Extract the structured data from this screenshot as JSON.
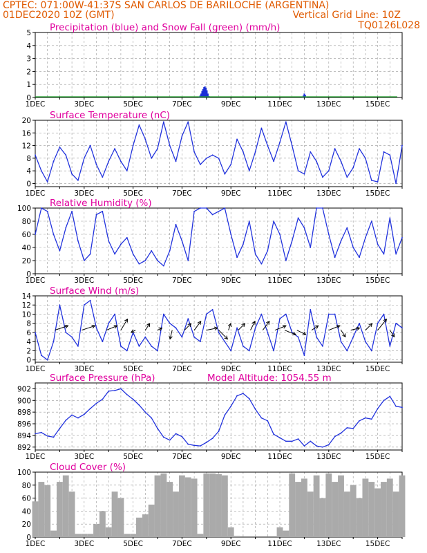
{
  "header": {
    "line1_left": "CPTEC:  071:00W-41:37S  SAN CARLOS DE BARILOCHE (ARGENTINA)",
    "line2_left": "01DEC2020 10Z (GMT)",
    "line2_right": "Vertical Grid Line: 10Z",
    "line3_right": "TQ0126L028"
  },
  "date_labels": [
    "1DEC",
    "3DEC",
    "5DEC",
    "7DEC",
    "9DEC",
    "11DEC",
    "13DEC",
    "15DEC"
  ],
  "year_fragment": "202",
  "panels": {
    "precip": {
      "title": "Precipitation (blue) and Snow Fall (green) (mm/h)"
    },
    "temp": {
      "title": "Surface Temperature (nC)"
    },
    "rh": {
      "title": "Relative Humidity (%)"
    },
    "wind": {
      "title": "Surface Wind (m/s)"
    },
    "pres": {
      "title": "Surface Pressure (hPa)",
      "extra": "Model Altitude: 1054.55 m"
    },
    "cloud": {
      "title": "Cloud Cover (%)"
    }
  },
  "colors": {
    "header_text": "#e05a00",
    "panel_title": "#e0009e",
    "precip_rain": "#1a2fd6",
    "snow": "#1f9e2a",
    "line": "#2233dd",
    "cloud_bars": "#aaaaaa",
    "grid": "#999999"
  },
  "chart_data": [
    {
      "type": "bar",
      "title": "Precipitation (blue) and Snow Fall (green) (mm/h)",
      "x_unit": "days since 01DEC2020 10Z",
      "ylim": [
        0,
        5
      ],
      "yticks": [
        0,
        1,
        2,
        3,
        4,
        5
      ],
      "series": [
        {
          "name": "Precipitation",
          "x": [
            6.7,
            6.74,
            6.78,
            6.82,
            6.86,
            6.9,
            6.94,
            6.98,
            7.02,
            7.06,
            7.1,
            10.92,
            10.96,
            11.0,
            11.04,
            11.08
          ],
          "values": [
            0.05,
            0.15,
            0.3,
            0.5,
            0.65,
            0.8,
            0.85,
            0.75,
            0.55,
            0.3,
            0.1,
            0.05,
            0.15,
            0.3,
            0.2,
            0.05
          ]
        },
        {
          "name": "Snow Fall",
          "x": [
            0.0,
            14.8
          ],
          "values": [
            0.05,
            0.05
          ]
        }
      ]
    },
    {
      "type": "line",
      "title": "Surface Temperature (nC)",
      "x_unit": "days since 01DEC2020 10Z",
      "ylim": [
        -1,
        20
      ],
      "yticks": [
        0,
        4,
        8,
        12,
        16,
        20
      ],
      "x": [
        0.0,
        0.25,
        0.5,
        0.75,
        1.0,
        1.25,
        1.5,
        1.75,
        2.0,
        2.25,
        2.5,
        2.75,
        3.0,
        3.25,
        3.5,
        3.75,
        4.0,
        4.25,
        4.5,
        4.75,
        5.0,
        5.25,
        5.5,
        5.75,
        6.0,
        6.25,
        6.5,
        6.75,
        7.0,
        7.25,
        7.5,
        7.75,
        8.0,
        8.25,
        8.5,
        8.75,
        9.0,
        9.25,
        9.5,
        9.75,
        10.0,
        10.25,
        10.5,
        10.75,
        11.0,
        11.25,
        11.5,
        11.75,
        12.0,
        12.25,
        12.5,
        12.75,
        13.0,
        13.25,
        13.5,
        13.75,
        14.0,
        14.25,
        14.5,
        14.75,
        15.0
      ],
      "values": [
        9,
        4,
        0.5,
        7,
        11.5,
        9,
        3,
        1,
        8,
        12,
        6,
        2,
        7,
        11,
        7,
        4,
        12,
        18.5,
        14,
        8,
        11,
        19.5,
        12,
        7,
        15,
        19.5,
        10,
        6,
        8,
        9,
        8,
        3,
        6,
        14,
        10,
        4,
        10,
        17.5,
        12,
        7,
        13,
        19.5,
        12,
        4,
        3,
        10,
        7,
        2,
        4,
        11,
        7,
        2,
        5,
        11,
        8,
        1,
        0.5,
        10,
        9,
        0,
        12
      ]
    },
    {
      "type": "line",
      "title": "Relative Humidity (%)",
      "x_unit": "days since 01DEC2020 10Z",
      "ylim": [
        0,
        100
      ],
      "yticks": [
        0,
        20,
        40,
        60,
        80,
        100
      ],
      "x": [
        0.0,
        0.25,
        0.5,
        0.75,
        1.0,
        1.25,
        1.5,
        1.75,
        2.0,
        2.25,
        2.5,
        2.75,
        3.0,
        3.25,
        3.5,
        3.75,
        4.0,
        4.25,
        4.5,
        4.75,
        5.0,
        5.25,
        5.5,
        5.75,
        6.0,
        6.25,
        6.5,
        6.75,
        7.0,
        7.25,
        7.5,
        7.75,
        8.0,
        8.25,
        8.5,
        8.75,
        9.0,
        9.25,
        9.5,
        9.75,
        10.0,
        10.25,
        10.5,
        10.75,
        11.0,
        11.25,
        11.5,
        11.75,
        12.0,
        12.25,
        12.5,
        12.75,
        13.0,
        13.25,
        13.5,
        13.75,
        14.0,
        14.25,
        14.5,
        14.75,
        15.0
      ],
      "values": [
        60,
        100,
        95,
        60,
        35,
        70,
        95,
        50,
        20,
        30,
        90,
        95,
        50,
        30,
        45,
        55,
        30,
        15,
        20,
        35,
        20,
        12,
        35,
        75,
        50,
        20,
        95,
        100,
        100,
        90,
        95,
        100,
        60,
        25,
        45,
        80,
        30,
        15,
        35,
        80,
        60,
        20,
        50,
        85,
        70,
        40,
        100,
        100,
        60,
        25,
        50,
        70,
        40,
        25,
        55,
        80,
        45,
        30,
        85,
        30,
        55
      ]
    },
    {
      "type": "line",
      "title": "Surface Wind (m/s)",
      "x_unit": "days since 01DEC2020 10Z",
      "ylim": [
        -0.5,
        14
      ],
      "yticks": [
        0,
        2,
        4,
        6,
        8,
        10,
        12,
        14
      ],
      "x": [
        0.0,
        0.25,
        0.5,
        0.75,
        1.0,
        1.25,
        1.5,
        1.75,
        2.0,
        2.25,
        2.5,
        2.75,
        3.0,
        3.25,
        3.5,
        3.75,
        4.0,
        4.25,
        4.5,
        4.75,
        5.0,
        5.25,
        5.5,
        5.75,
        6.0,
        6.25,
        6.5,
        6.75,
        7.0,
        7.25,
        7.5,
        7.75,
        8.0,
        8.25,
        8.5,
        8.75,
        9.0,
        9.25,
        9.5,
        9.75,
        10.0,
        10.25,
        10.5,
        10.75,
        11.0,
        11.25,
        11.5,
        11.75,
        12.0,
        12.25,
        12.5,
        12.75,
        13.0,
        13.25,
        13.5,
        13.75,
        14.0,
        14.25,
        14.5,
        14.75,
        15.0
      ],
      "values": [
        6,
        1,
        0,
        4,
        12,
        6,
        5,
        3,
        12,
        13,
        7,
        4,
        8,
        10,
        3,
        2,
        6,
        3,
        5,
        3,
        2,
        10,
        8,
        7,
        5,
        9,
        5,
        4,
        10,
        11,
        6,
        4,
        2,
        7,
        3,
        2,
        7,
        10,
        6,
        2,
        9,
        10,
        6,
        5,
        1,
        11,
        5,
        3,
        10,
        10,
        4,
        2,
        5,
        8,
        4,
        2,
        8,
        10,
        3,
        8,
        7
      ],
      "arrows": {
        "x": [
          0.8,
          1.9,
          2.9,
          3.5,
          4.1,
          4.5,
          5.0,
          5.6,
          6.1,
          6.5,
          7.0,
          7.5,
          7.9,
          8.3,
          8.8,
          9.3,
          9.8,
          10.2,
          10.7,
          11.3,
          12.0,
          12.5,
          12.9,
          13.5,
          14.0,
          14.5
        ],
        "u": [
          6,
          6,
          5,
          3,
          -2,
          2,
          2,
          -1,
          3,
          3,
          5,
          4,
          1,
          3,
          2,
          3,
          5,
          5,
          4,
          3,
          5,
          2,
          4,
          3,
          4,
          2
        ],
        "v": [
          2,
          2,
          2,
          5,
          -1,
          3,
          1,
          -4,
          3,
          4,
          1,
          -4,
          3,
          3,
          4,
          4,
          2,
          -2,
          -2,
          2,
          2,
          -3,
          1,
          3,
          5,
          -3
        ]
      }
    },
    {
      "type": "line",
      "title": "Surface Pressure (hPa)",
      "x_unit": "days since 01DEC2020 10Z",
      "ylim": [
        891.5,
        903
      ],
      "yticks": [
        892,
        894,
        896,
        898,
        900,
        902
      ],
      "x": [
        0.0,
        0.25,
        0.5,
        0.75,
        1.0,
        1.25,
        1.5,
        1.75,
        2.0,
        2.25,
        2.5,
        2.75,
        3.0,
        3.25,
        3.5,
        3.75,
        4.0,
        4.25,
        4.5,
        4.75,
        5.0,
        5.25,
        5.5,
        5.75,
        6.0,
        6.25,
        6.5,
        6.75,
        7.0,
        7.25,
        7.5,
        7.75,
        8.0,
        8.25,
        8.5,
        8.75,
        9.0,
        9.25,
        9.5,
        9.75,
        10.0,
        10.25,
        10.5,
        10.75,
        11.0,
        11.25,
        11.5,
        11.75,
        12.0,
        12.25,
        12.5,
        12.75,
        13.0,
        13.25,
        13.5,
        13.75,
        14.0,
        14.25,
        14.5,
        14.75,
        15.0
      ],
      "values": [
        894.3,
        894.5,
        893.9,
        893.7,
        895.2,
        896.6,
        897.5,
        897.0,
        897.6,
        898.6,
        899.5,
        900.2,
        901.6,
        901.7,
        902.0,
        901.0,
        900.2,
        899.2,
        898.0,
        897.0,
        895.2,
        893.7,
        893.2,
        894.3,
        893.8,
        892.5,
        892.3,
        892.2,
        892.8,
        893.5,
        894.7,
        897.5,
        899.0,
        900.8,
        901.2,
        900.3,
        898.5,
        897.0,
        896.5,
        894.2,
        893.6,
        893.0,
        893.0,
        893.4,
        892.2,
        893.0,
        892.2,
        892.0,
        892.4,
        893.8,
        894.4,
        895.3,
        895.2,
        896.5,
        897.0,
        896.8,
        898.6,
        900.0,
        900.7,
        899.0,
        898.8
      ]
    },
    {
      "type": "bar",
      "title": "Cloud Cover (%)",
      "x_unit": "days since 01DEC2020 10Z",
      "ylim": [
        0,
        100
      ],
      "yticks": [
        0,
        20,
        40,
        60,
        80,
        100
      ],
      "x": [
        0.0,
        0.25,
        0.5,
        0.75,
        1.0,
        1.25,
        1.5,
        1.75,
        2.0,
        2.25,
        2.5,
        2.75,
        3.0,
        3.25,
        3.5,
        3.75,
        4.0,
        4.25,
        4.5,
        4.75,
        5.0,
        5.25,
        5.5,
        5.75,
        6.0,
        6.25,
        6.5,
        6.75,
        7.0,
        7.25,
        7.5,
        7.75,
        8.0,
        8.25,
        8.5,
        8.75,
        9.0,
        9.25,
        9.5,
        9.75,
        10.0,
        10.25,
        10.5,
        10.75,
        11.0,
        11.25,
        11.5,
        11.75,
        12.0,
        12.25,
        12.5,
        12.75,
        13.0,
        13.25,
        13.5,
        13.75,
        14.0,
        14.25,
        14.5,
        14.75,
        15.0
      ],
      "values": [
        55,
        85,
        80,
        10,
        85,
        95,
        70,
        5,
        5,
        5,
        20,
        40,
        15,
        70,
        60,
        5,
        5,
        30,
        35,
        50,
        95,
        98,
        85,
        70,
        95,
        92,
        90,
        5,
        98,
        98,
        97,
        95,
        15,
        2,
        0,
        0,
        0,
        0,
        0,
        0,
        15,
        10,
        98,
        85,
        90,
        70,
        95,
        60,
        98,
        85,
        95,
        70,
        80,
        60,
        90,
        85,
        75,
        85,
        90,
        70,
        95
      ]
    }
  ]
}
